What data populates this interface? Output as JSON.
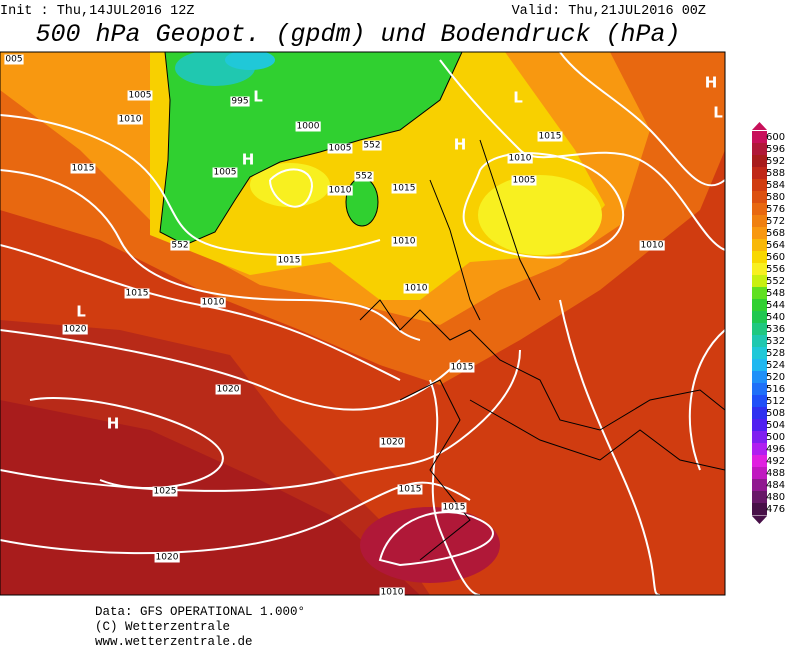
{
  "header": {
    "init": "Init : Thu,14JUL2016 12Z",
    "valid": "Valid: Thu,21JUL2016 00Z",
    "title": "500 hPa Geopot. (gpdm) und Bodendruck (hPa)"
  },
  "map": {
    "pressure_labels": [
      "005",
      "1005",
      "995",
      "1010",
      "1000",
      "1005",
      "1015",
      "1005",
      "1010",
      "1015",
      "1010",
      "1015",
      "1005",
      "1010",
      "1015",
      "1010",
      "1015",
      "1010",
      "1010",
      "1020",
      "1015",
      "1020",
      "1020",
      "1015",
      "1015",
      "1025",
      "1020",
      "1010"
    ],
    "geopotential_labels": [
      "552",
      "552",
      "552"
    ],
    "centers": [
      "L",
      "H",
      "H",
      "L",
      "H",
      "L",
      "L",
      "H"
    ]
  },
  "colorbar": {
    "levels": [
      {
        "value": 600,
        "color": "#c8105a"
      },
      {
        "value": 596,
        "color": "#b01838"
      },
      {
        "value": 592,
        "color": "#a81c1c"
      },
      {
        "value": 588,
        "color": "#c02818"
      },
      {
        "value": 584,
        "color": "#d03c10"
      },
      {
        "value": 580,
        "color": "#dc5010"
      },
      {
        "value": 576,
        "color": "#e86810"
      },
      {
        "value": 572,
        "color": "#f08010"
      },
      {
        "value": 568,
        "color": "#f89810"
      },
      {
        "value": 564,
        "color": "#f8b808"
      },
      {
        "value": 560,
        "color": "#f8d800"
      },
      {
        "value": 556,
        "color": "#f8f020"
      },
      {
        "value": 552,
        "color": "#c8f010"
      },
      {
        "value": 548,
        "color": "#60e020"
      },
      {
        "value": 544,
        "color": "#30d030"
      },
      {
        "value": 540,
        "color": "#20c850"
      },
      {
        "value": 536,
        "color": "#20c880"
      },
      {
        "value": 532,
        "color": "#20c8b0"
      },
      {
        "value": 528,
        "color": "#20c8d8"
      },
      {
        "value": 524,
        "color": "#20b8f0"
      },
      {
        "value": 520,
        "color": "#2090f8"
      },
      {
        "value": 516,
        "color": "#2070f8"
      },
      {
        "value": 512,
        "color": "#2050f8"
      },
      {
        "value": 508,
        "color": "#3030f0"
      },
      {
        "value": 504,
        "color": "#5020f0"
      },
      {
        "value": 500,
        "color": "#8020f0"
      },
      {
        "value": 496,
        "color": "#b020f0"
      },
      {
        "value": 492,
        "color": "#e020e0"
      },
      {
        "value": 488,
        "color": "#c018c0"
      },
      {
        "value": 484,
        "color": "#901890"
      },
      {
        "value": 480,
        "color": "#681868"
      },
      {
        "value": 476,
        "color": "#481048"
      }
    ]
  },
  "footer": {
    "lines": [
      "Data: GFS OPERATIONAL 1.000°",
      "(C) Wetterzentrale",
      "www.wetterzentrale.de"
    ]
  }
}
